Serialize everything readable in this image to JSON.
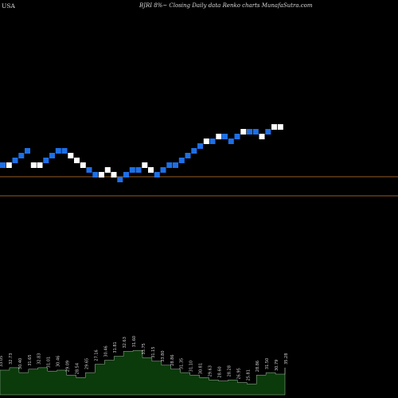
{
  "header": {
    "country": "USA",
    "title": "BJRI 8%~ Closing Daily data Renko charts MunafaSutra.com"
  },
  "colors": {
    "background": "#000000",
    "up_brick": "#ffffff",
    "down_brick": "#1e6fe6",
    "reference_line": "#c87832",
    "volume_fill": "#0b3a0b",
    "volume_outline": "#cfe8cf",
    "label_text": "#cfcfcf"
  },
  "chart_data": {
    "type": "renko",
    "title": "BJRI 8%~ Closing Daily data Renko charts MunafaSutra.com",
    "brick_levels": [
      10,
      10,
      11,
      12,
      13,
      10,
      10,
      11,
      12,
      13,
      13,
      12,
      11,
      10,
      9,
      8,
      8,
      9,
      8,
      7,
      8,
      9,
      9,
      10,
      9,
      8,
      9,
      10,
      10,
      11,
      12,
      13,
      14,
      15,
      15,
      16,
      16,
      15,
      16,
      17,
      17,
      17,
      16,
      17,
      18,
      18
    ],
    "brick_directions": [
      "down",
      "up",
      "down",
      "down",
      "down",
      "up",
      "up",
      "down",
      "down",
      "down",
      "down",
      "up",
      "up",
      "up",
      "down",
      "down",
      "up",
      "up",
      "up",
      "down",
      "down",
      "down",
      "down",
      "up",
      "up",
      "down",
      "down",
      "down",
      "down",
      "down",
      "down",
      "down",
      "down",
      "up",
      "down",
      "up",
      "down",
      "down",
      "down",
      "up",
      "down",
      "down",
      "up",
      "down",
      "up",
      "up"
    ],
    "reference_lines": [
      "upper",
      "lower"
    ],
    "volume_labels": [
      "33.05",
      "32.73",
      "30.40",
      "31.65",
      "32.83",
      "31.01",
      "30.46",
      "29.09",
      "28.54",
      "29.65",
      "27.16",
      "30.46",
      "31.81",
      "32.63",
      "31.60",
      "33.75",
      "31.15",
      "33.80",
      "28.86",
      "31.35",
      "31.10",
      "30.81",
      "29.63",
      "28.60",
      "28.28",
      "26.95",
      "25.81",
      "28.86",
      "31.50",
      "30.79",
      "35.28"
    ],
    "volume_levels": [
      0.5,
      0.55,
      0.45,
      0.52,
      0.55,
      0.48,
      0.5,
      0.4,
      0.35,
      0.45,
      0.62,
      0.7,
      0.78,
      0.88,
      0.9,
      0.75,
      0.68,
      0.6,
      0.52,
      0.45,
      0.4,
      0.35,
      0.3,
      0.28,
      0.3,
      0.25,
      0.22,
      0.4,
      0.45,
      0.42,
      0.55
    ]
  }
}
